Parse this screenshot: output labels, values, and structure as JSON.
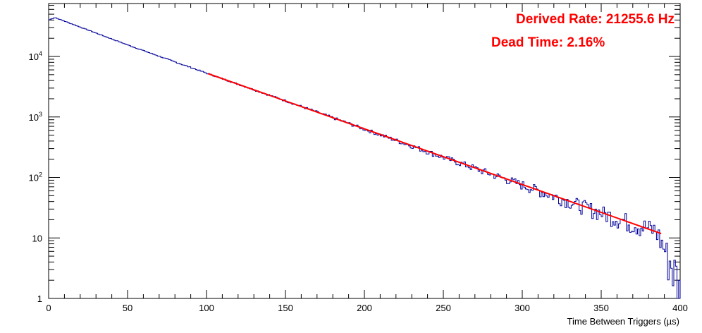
{
  "chart_data": {
    "type": "line",
    "title": "",
    "xlabel": "Time Between Triggers (µs)",
    "ylabel": "",
    "xlim": [
      0,
      400
    ],
    "ylim": [
      1,
      75000
    ],
    "yscale": "log",
    "grid": false,
    "legend": "none",
    "x_tick_labels": [
      "0",
      "50",
      "100",
      "150",
      "200",
      "250",
      "300",
      "350",
      "400"
    ],
    "y_tick_labels": [
      {
        "value": 1,
        "base": "1",
        "exp": ""
      },
      {
        "value": 10,
        "base": "10",
        "exp": ""
      },
      {
        "value": 100,
        "base": "10",
        "exp": "2"
      },
      {
        "value": 1000,
        "base": "10",
        "exp": "3"
      },
      {
        "value": 10000,
        "base": "10",
        "exp": "4"
      }
    ],
    "series": [
      {
        "kind": "histogram",
        "color": "#000099",
        "bin_width": 1,
        "x_range": [
          0,
          400
        ],
        "peak": {
          "x": 4,
          "y": 44000
        },
        "points": [
          {
            "x": 0,
            "y": 40000
          },
          {
            "x": 4,
            "y": 44000
          },
          {
            "x": 50,
            "y": 15500
          },
          {
            "x": 100,
            "y": 5300
          },
          {
            "x": 150,
            "y": 1850
          },
          {
            "x": 200,
            "y": 630
          },
          {
            "x": 250,
            "y": 215
          },
          {
            "x": 300,
            "y": 75
          },
          {
            "x": 350,
            "y": 26
          },
          {
            "x": 385,
            "y": 13
          },
          {
            "x": 399,
            "y": 2
          }
        ]
      },
      {
        "kind": "fit",
        "color": "#ff0000",
        "points": [
          {
            "x": 101,
            "y": 5200
          },
          {
            "x": 388,
            "y": 11.8
          }
        ]
      }
    ],
    "annotations": [
      {
        "text": "Derived Rate: 21255.6 Hz",
        "color": "#ff0000"
      },
      {
        "text": "Dead Time: 2.16%",
        "color": "#ff0000"
      }
    ]
  }
}
